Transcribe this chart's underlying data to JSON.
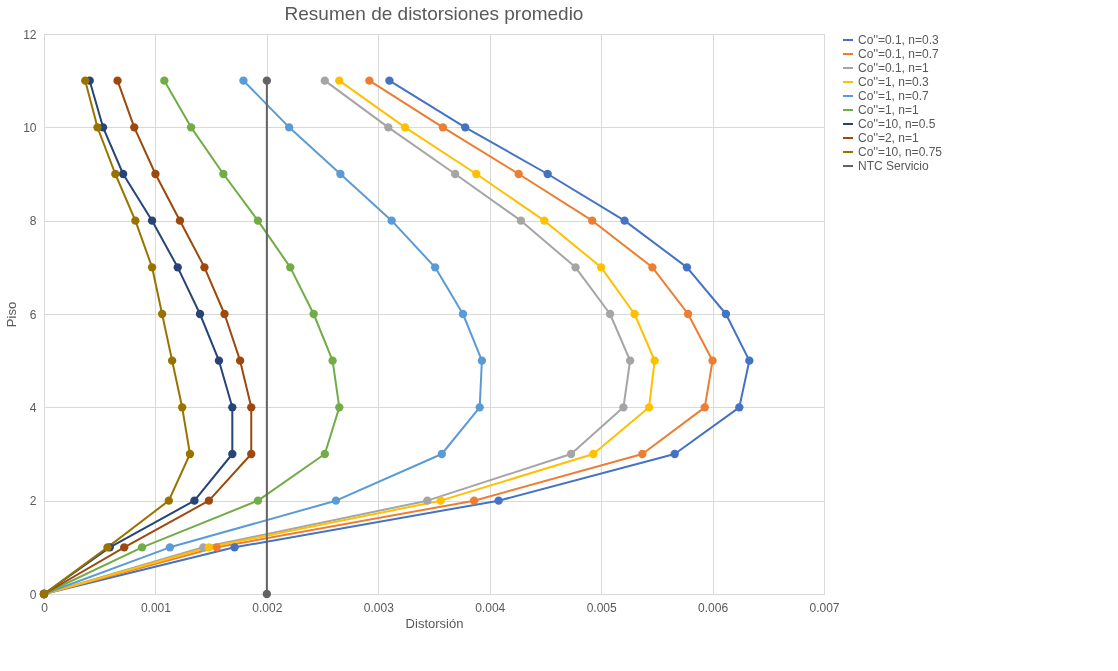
{
  "chart_data": {
    "type": "line",
    "title": "Resumen de distorsiones promedio",
    "xlabel": "Distorsión",
    "ylabel": "Piso",
    "xlim": [
      0,
      0.007
    ],
    "xticks": [
      0,
      0.001,
      0.002,
      0.003,
      0.004,
      0.005,
      0.006,
      0.007
    ],
    "ylim": [
      0,
      12
    ],
    "yticks": [
      0,
      2,
      4,
      6,
      8,
      10,
      12
    ],
    "grid": true,
    "legend": "right",
    "marker": "circle",
    "series": [
      {
        "name": "Co''=0.1, n=0.3",
        "color": "#4472c4",
        "x": [
          0,
          0.00171,
          0.00408,
          0.00566,
          0.00624,
          0.00633,
          0.00612,
          0.00577,
          0.00521,
          0.00452,
          0.00378,
          0.0031
        ],
        "values": [
          0,
          1,
          2,
          3,
          4,
          5,
          6,
          7,
          8,
          9,
          10,
          11
        ]
      },
      {
        "name": "Co''=0.1, n=0.7",
        "color": "#ed7d31",
        "x": [
          0,
          0.00155,
          0.00386,
          0.00537,
          0.00593,
          0.006,
          0.00578,
          0.00546,
          0.00492,
          0.00426,
          0.00358,
          0.00292
        ],
        "values": [
          0,
          1,
          2,
          3,
          4,
          5,
          6,
          7,
          8,
          9,
          10,
          11
        ]
      },
      {
        "name": "Co''=0.1, n=1",
        "color": "#a5a5a5",
        "x": [
          0,
          0.00143,
          0.00344,
          0.00473,
          0.0052,
          0.00526,
          0.00508,
          0.00477,
          0.00428,
          0.00369,
          0.00309,
          0.00252
        ],
        "values": [
          0,
          1,
          2,
          3,
          4,
          5,
          6,
          7,
          8,
          9,
          10,
          11
        ]
      },
      {
        "name": "Co''=1, n=0.3",
        "color": "#ffc000",
        "x": [
          0,
          0.00148,
          0.00356,
          0.00493,
          0.00543,
          0.00548,
          0.0053,
          0.005,
          0.00449,
          0.00388,
          0.00324,
          0.00265
        ],
        "values": [
          0,
          1,
          2,
          3,
          4,
          5,
          6,
          7,
          8,
          9,
          10,
          11
        ]
      },
      {
        "name": "Co''=1, n=0.7",
        "color": "#5b9bd5",
        "x": [
          0,
          0.00113,
          0.00262,
          0.00357,
          0.00391,
          0.00393,
          0.00376,
          0.00351,
          0.00312,
          0.00266,
          0.0022,
          0.00179
        ],
        "values": [
          0,
          1,
          2,
          3,
          4,
          5,
          6,
          7,
          8,
          9,
          10,
          11
        ]
      },
      {
        "name": "Co''=1, n=1",
        "color": "#70ad47",
        "x": [
          0,
          0.00088,
          0.00192,
          0.00252,
          0.00265,
          0.00259,
          0.00242,
          0.00221,
          0.00192,
          0.00161,
          0.00132,
          0.00108
        ],
        "values": [
          0,
          1,
          2,
          3,
          4,
          5,
          6,
          7,
          8,
          9,
          10,
          11
        ]
      },
      {
        "name": "Co''=10, n=0.5",
        "color": "#264478",
        "x": [
          0,
          0.00059,
          0.00135,
          0.00169,
          0.00169,
          0.00157,
          0.0014,
          0.0012,
          0.00097,
          0.00071,
          0.00053,
          0.00041
        ],
        "values": [
          0,
          1,
          2,
          3,
          4,
          5,
          6,
          7,
          8,
          9,
          10,
          11
        ]
      },
      {
        "name": "Co''=2, n=1",
        "color": "#9e480e",
        "x": [
          0,
          0.00072,
          0.00148,
          0.00186,
          0.00186,
          0.00176,
          0.00162,
          0.00144,
          0.00122,
          0.001,
          0.00081,
          0.00066
        ],
        "values": [
          0,
          1,
          2,
          3,
          4,
          5,
          6,
          7,
          8,
          9,
          10,
          11
        ]
      },
      {
        "name": "Co''=10, n=0.75",
        "color": "#997300",
        "x": [
          0,
          0.00057,
          0.00112,
          0.00131,
          0.00124,
          0.00115,
          0.00106,
          0.00097,
          0.00082,
          0.00064,
          0.00048,
          0.00037
        ],
        "values": [
          0,
          1,
          2,
          3,
          4,
          5,
          6,
          7,
          8,
          9,
          10,
          11
        ]
      },
      {
        "name": "NTC Servicio",
        "color": "#636363",
        "x": [
          0.002,
          0.002
        ],
        "values": [
          0,
          11
        ]
      }
    ]
  }
}
